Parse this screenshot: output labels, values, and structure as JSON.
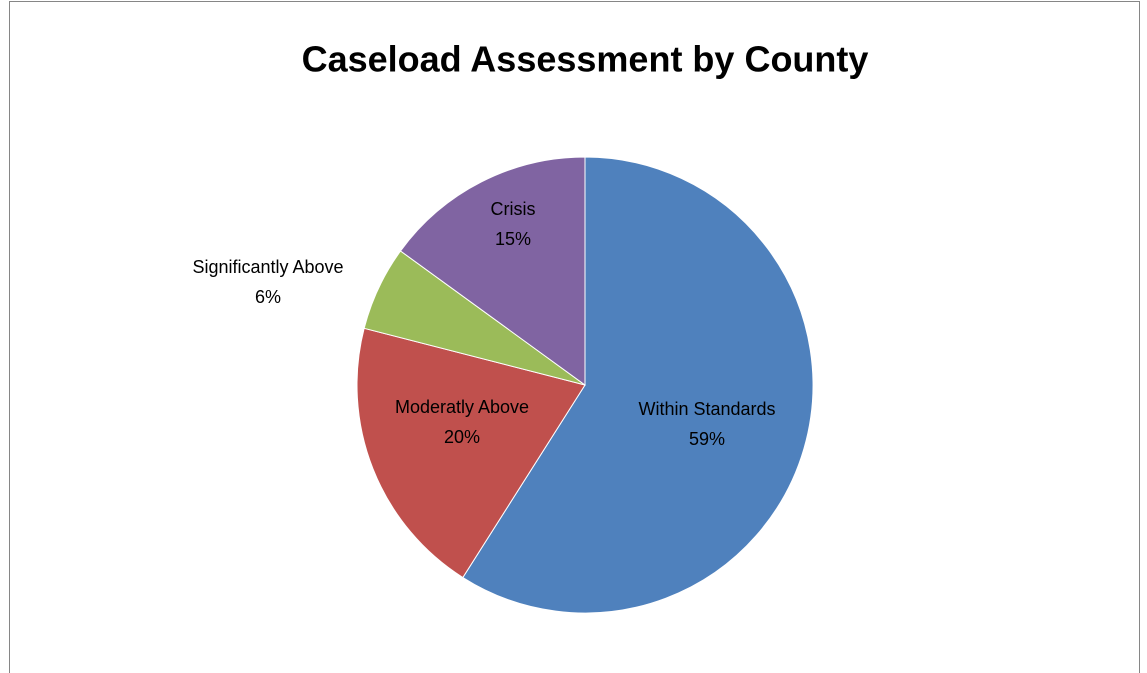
{
  "chart_data": {
    "type": "pie",
    "title": "Caseload Assessment by County",
    "categories": [
      "Within Standards",
      "Moderatly Above",
      "Significantly Above",
      "Crisis"
    ],
    "values": [
      59,
      20,
      6,
      15
    ],
    "value_labels": [
      "59%",
      "20%",
      "6%",
      "15%"
    ],
    "colors": [
      "#4f81bd",
      "#c0504d",
      "#9bbb59",
      "#8064a2"
    ]
  }
}
